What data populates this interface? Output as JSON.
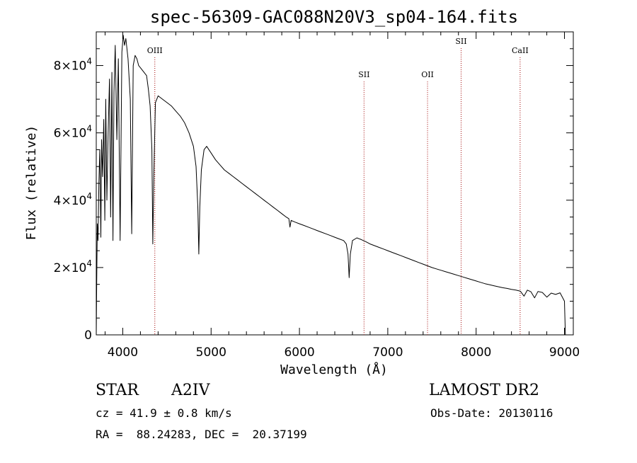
{
  "chart_data": {
    "type": "line",
    "title": "spec-56309-GAC088N20V3_sp04-164.fits",
    "xlabel": "Wavelength (Å)",
    "ylabel": "Flux (relative)",
    "xlim": [
      3700,
      9100
    ],
    "ylim": [
      0,
      90000
    ],
    "xticks": [
      4000,
      5000,
      6000,
      7000,
      8000,
      9000
    ],
    "yticks": [
      {
        "value": 0,
        "mantissa": "0",
        "exponent": ""
      },
      {
        "value": 20000,
        "mantissa": "2×10",
        "exponent": "4"
      },
      {
        "value": 40000,
        "mantissa": "4×10",
        "exponent": "4"
      },
      {
        "value": 60000,
        "mantissa": "6×10",
        "exponent": "4"
      },
      {
        "value": 80000,
        "mantissa": "8×10",
        "exponent": "4"
      }
    ],
    "grid": false,
    "series": [
      {
        "points": [
          [
            3700,
            0
          ],
          [
            3705,
            15000
          ],
          [
            3712,
            33000
          ],
          [
            3720,
            28000
          ],
          [
            3730,
            45000
          ],
          [
            3740,
            55000
          ],
          [
            3752,
            29000
          ],
          [
            3760,
            58000
          ],
          [
            3772,
            47000
          ],
          [
            3785,
            64000
          ],
          [
            3797,
            34000
          ],
          [
            3807,
            70000
          ],
          [
            3820,
            40000
          ],
          [
            3835,
            60000
          ],
          [
            3850,
            76000
          ],
          [
            3863,
            35000
          ],
          [
            3877,
            78000
          ],
          [
            3889,
            28000
          ],
          [
            3900,
            72000
          ],
          [
            3915,
            86000
          ],
          [
            3933,
            58000
          ],
          [
            3950,
            82000
          ],
          [
            3970,
            28000
          ],
          [
            3990,
            84000
          ],
          [
            4005,
            89000
          ],
          [
            4020,
            86000
          ],
          [
            4035,
            88000
          ],
          [
            4060,
            82000
          ],
          [
            4085,
            70000
          ],
          [
            4101,
            30000
          ],
          [
            4118,
            80000
          ],
          [
            4140,
            83000
          ],
          [
            4160,
            82000
          ],
          [
            4180,
            80000
          ],
          [
            4210,
            79000
          ],
          [
            4240,
            78000
          ],
          [
            4270,
            77000
          ],
          [
            4290,
            73000
          ],
          [
            4310,
            68000
          ],
          [
            4330,
            55000
          ],
          [
            4340,
            27000
          ],
          [
            4352,
            48000
          ],
          [
            4370,
            69000
          ],
          [
            4400,
            71000
          ],
          [
            4450,
            70000
          ],
          [
            4500,
            69000
          ],
          [
            4550,
            68000
          ],
          [
            4600,
            66500
          ],
          [
            4650,
            65000
          ],
          [
            4700,
            63000
          ],
          [
            4750,
            60000
          ],
          [
            4800,
            56000
          ],
          [
            4830,
            50000
          ],
          [
            4850,
            38000
          ],
          [
            4861,
            24000
          ],
          [
            4872,
            38000
          ],
          [
            4890,
            49000
          ],
          [
            4920,
            55000
          ],
          [
            4950,
            56000
          ],
          [
            5000,
            54000
          ],
          [
            5050,
            52000
          ],
          [
            5100,
            50500
          ],
          [
            5150,
            49000
          ],
          [
            5200,
            48000
          ],
          [
            5250,
            47000
          ],
          [
            5300,
            46000
          ],
          [
            5350,
            45000
          ],
          [
            5400,
            44000
          ],
          [
            5450,
            43000
          ],
          [
            5500,
            42000
          ],
          [
            5550,
            41000
          ],
          [
            5600,
            40000
          ],
          [
            5650,
            39000
          ],
          [
            5700,
            38000
          ],
          [
            5750,
            37000
          ],
          [
            5800,
            36000
          ],
          [
            5850,
            35000
          ],
          [
            5880,
            34500
          ],
          [
            5893,
            32000
          ],
          [
            5906,
            34000
          ],
          [
            5950,
            33500
          ],
          [
            6000,
            33000
          ],
          [
            6050,
            32500
          ],
          [
            6100,
            32000
          ],
          [
            6150,
            31500
          ],
          [
            6200,
            31000
          ],
          [
            6250,
            30500
          ],
          [
            6300,
            30000
          ],
          [
            6350,
            29500
          ],
          [
            6400,
            29000
          ],
          [
            6450,
            28500
          ],
          [
            6500,
            28000
          ],
          [
            6530,
            27000
          ],
          [
            6550,
            24000
          ],
          [
            6563,
            17000
          ],
          [
            6576,
            24000
          ],
          [
            6600,
            28000
          ],
          [
            6650,
            28800
          ],
          [
            6700,
            28300
          ],
          [
            6750,
            27700
          ],
          [
            6800,
            27000
          ],
          [
            6850,
            26500
          ],
          [
            6900,
            26000
          ],
          [
            6950,
            25500
          ],
          [
            7000,
            25000
          ],
          [
            7050,
            24500
          ],
          [
            7100,
            24000
          ],
          [
            7150,
            23500
          ],
          [
            7200,
            23000
          ],
          [
            7250,
            22500
          ],
          [
            7300,
            22000
          ],
          [
            7350,
            21500
          ],
          [
            7400,
            21000
          ],
          [
            7450,
            20500
          ],
          [
            7500,
            20000
          ],
          [
            7550,
            19600
          ],
          [
            7600,
            19200
          ],
          [
            7650,
            18800
          ],
          [
            7700,
            18400
          ],
          [
            7750,
            18000
          ],
          [
            7800,
            17600
          ],
          [
            7850,
            17200
          ],
          [
            7900,
            16800
          ],
          [
            7950,
            16400
          ],
          [
            8000,
            16000
          ],
          [
            8050,
            15600
          ],
          [
            8100,
            15200
          ],
          [
            8150,
            14900
          ],
          [
            8200,
            14600
          ],
          [
            8250,
            14300
          ],
          [
            8300,
            14000
          ],
          [
            8350,
            13800
          ],
          [
            8400,
            13500
          ],
          [
            8450,
            13300
          ],
          [
            8500,
            13000
          ],
          [
            8542,
            11500
          ],
          [
            8580,
            13300
          ],
          [
            8620,
            12800
          ],
          [
            8662,
            11000
          ],
          [
            8700,
            12900
          ],
          [
            8750,
            12600
          ],
          [
            8800,
            11200
          ],
          [
            8850,
            12400
          ],
          [
            8900,
            12000
          ],
          [
            8950,
            12500
          ],
          [
            9000,
            10000
          ],
          [
            9010,
            0
          ]
        ]
      }
    ],
    "line_markers": [
      {
        "label": "OIII",
        "x": 4363,
        "level": 0.93
      },
      {
        "label": "SII",
        "x": 6731,
        "level": 0.85
      },
      {
        "label": "OII",
        "x": 7450,
        "level": 0.85
      },
      {
        "label": "SII",
        "x": 7830,
        "level": 0.96
      },
      {
        "label": "CaII",
        "x": 8498,
        "level": 0.93
      }
    ],
    "marker_color": "#a00000"
  },
  "info": {
    "object_type": "STAR",
    "spectral_class": "A2IV",
    "survey": "LAMOST DR2",
    "redshift": "cz = 41.9 ± 0.8 km/s",
    "obs_date": "Obs-Date: 20130116",
    "coords": "RA =  88.24283, DEC =  20.37199"
  }
}
